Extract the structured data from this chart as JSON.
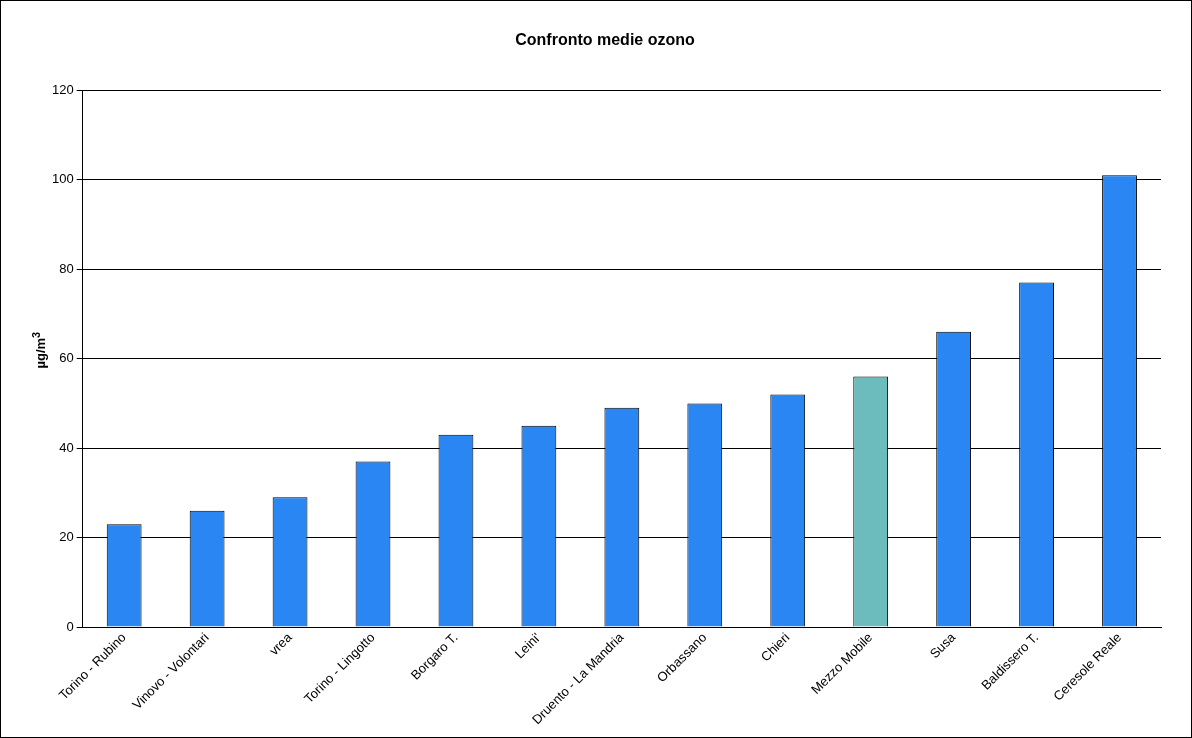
{
  "chart_data": {
    "type": "bar",
    "title": "Confronto medie ozono",
    "ylabel": "µg/m$^{3}$",
    "categories": [
      "Torino - Rubino",
      "Vinovo - Volontari",
      "vrea",
      "Torino - Lingotto",
      "Borgaro T.",
      "Leini'",
      "Druento - La Mandria",
      "Orbassano",
      "Chieri",
      "Mezzo Mobile",
      "Susa",
      "Baldissero T.",
      "Ceresole Reale"
    ],
    "values": [
      23,
      26,
      29,
      37,
      43,
      45,
      49,
      50,
      52,
      56,
      66,
      77,
      101
    ],
    "colors": [
      "#2a86f2",
      "#2a86f2",
      "#2a86f2",
      "#2a86f2",
      "#2a86f2",
      "#2a86f2",
      "#2a86f2",
      "#2a86f2",
      "#2a86f2",
      "#6cbcbe",
      "#2a86f2",
      "#2a86f2",
      "#2a86f2"
    ],
    "ylim": [
      0,
      120
    ],
    "yticks": [
      0,
      20,
      40,
      60,
      80,
      100,
      120
    ],
    "grid": "y",
    "legend": false
  }
}
